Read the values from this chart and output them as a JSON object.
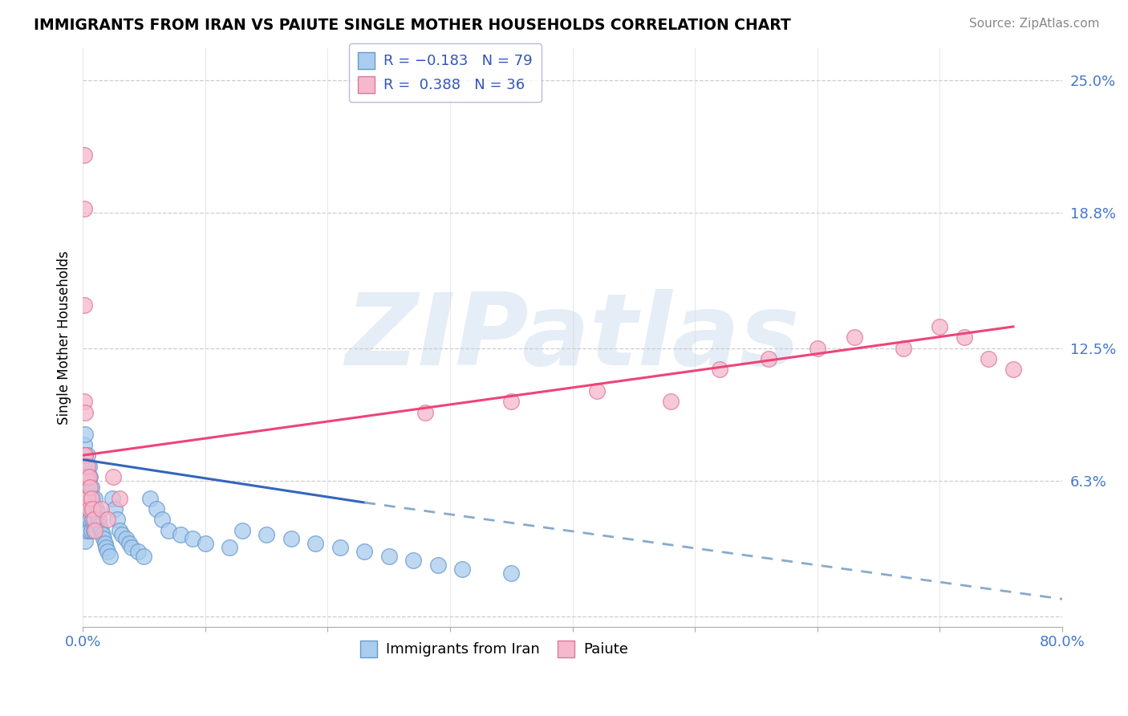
{
  "title": "IMMIGRANTS FROM IRAN VS PAIUTE SINGLE MOTHER HOUSEHOLDS CORRELATION CHART",
  "source": "Source: ZipAtlas.com",
  "ylabel": "Single Mother Households",
  "xlim": [
    0.0,
    0.8
  ],
  "ylim": [
    -0.005,
    0.265
  ],
  "yticks": [
    0.0,
    0.063,
    0.125,
    0.188,
    0.25
  ],
  "ytick_labels": [
    "",
    "6.3%",
    "12.5%",
    "18.8%",
    "25.0%"
  ],
  "legend_entries": [
    {
      "label": "R = −0.183   N = 79",
      "color": "#a8c8f0"
    },
    {
      "label": "R =  0.388   N = 36",
      "color": "#f0a8b8"
    }
  ],
  "blue_scatter_x": [
    0.001,
    0.001,
    0.001,
    0.001,
    0.001,
    0.001,
    0.001,
    0.001,
    0.002,
    0.002,
    0.002,
    0.002,
    0.002,
    0.002,
    0.003,
    0.003,
    0.003,
    0.003,
    0.004,
    0.004,
    0.004,
    0.004,
    0.005,
    0.005,
    0.005,
    0.005,
    0.006,
    0.006,
    0.006,
    0.007,
    0.007,
    0.007,
    0.008,
    0.008,
    0.009,
    0.009,
    0.01,
    0.01,
    0.011,
    0.011,
    0.012,
    0.013,
    0.014,
    0.015,
    0.016,
    0.017,
    0.018,
    0.019,
    0.02,
    0.022,
    0.024,
    0.026,
    0.028,
    0.03,
    0.032,
    0.035,
    0.038,
    0.04,
    0.045,
    0.05,
    0.055,
    0.06,
    0.065,
    0.07,
    0.08,
    0.09,
    0.1,
    0.12,
    0.13,
    0.15,
    0.17,
    0.19,
    0.21,
    0.23,
    0.25,
    0.27,
    0.29,
    0.31,
    0.35
  ],
  "blue_scatter_y": [
    0.08,
    0.075,
    0.07,
    0.065,
    0.06,
    0.055,
    0.05,
    0.045,
    0.085,
    0.075,
    0.065,
    0.055,
    0.045,
    0.035,
    0.07,
    0.06,
    0.05,
    0.04,
    0.075,
    0.065,
    0.055,
    0.045,
    0.07,
    0.06,
    0.05,
    0.04,
    0.065,
    0.055,
    0.045,
    0.06,
    0.05,
    0.04,
    0.055,
    0.045,
    0.05,
    0.04,
    0.055,
    0.045,
    0.05,
    0.04,
    0.048,
    0.045,
    0.042,
    0.04,
    0.038,
    0.036,
    0.034,
    0.032,
    0.03,
    0.028,
    0.055,
    0.05,
    0.045,
    0.04,
    0.038,
    0.036,
    0.034,
    0.032,
    0.03,
    0.028,
    0.055,
    0.05,
    0.045,
    0.04,
    0.038,
    0.036,
    0.034,
    0.032,
    0.04,
    0.038,
    0.036,
    0.034,
    0.032,
    0.03,
    0.028,
    0.026,
    0.024,
    0.022,
    0.02
  ],
  "pink_scatter_x": [
    0.001,
    0.001,
    0.001,
    0.001,
    0.001,
    0.002,
    0.002,
    0.002,
    0.003,
    0.003,
    0.004,
    0.004,
    0.005,
    0.005,
    0.006,
    0.007,
    0.008,
    0.009,
    0.01,
    0.015,
    0.02,
    0.025,
    0.03,
    0.28,
    0.35,
    0.42,
    0.48,
    0.52,
    0.56,
    0.6,
    0.63,
    0.67,
    0.7,
    0.72,
    0.74,
    0.76
  ],
  "pink_scatter_y": [
    0.215,
    0.19,
    0.145,
    0.1,
    0.075,
    0.095,
    0.075,
    0.065,
    0.065,
    0.055,
    0.07,
    0.055,
    0.065,
    0.05,
    0.06,
    0.055,
    0.05,
    0.045,
    0.04,
    0.05,
    0.045,
    0.065,
    0.055,
    0.095,
    0.1,
    0.105,
    0.1,
    0.115,
    0.12,
    0.125,
    0.13,
    0.125,
    0.135,
    0.13,
    0.12,
    0.115
  ],
  "blue_line_solid": {
    "x": [
      0.0,
      0.23
    ],
    "y": [
      0.073,
      0.053
    ]
  },
  "blue_line_dashed": {
    "x": [
      0.23,
      0.8
    ],
    "y": [
      0.053,
      0.008
    ]
  },
  "pink_line_solid": {
    "x": [
      0.0,
      0.76
    ],
    "y": [
      0.075,
      0.135
    ]
  },
  "watermark": "ZIPatlas",
  "background_color": "#ffffff"
}
